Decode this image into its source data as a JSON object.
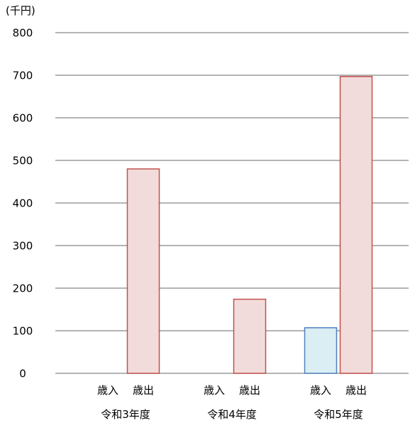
{
  "chart_data": {
    "type": "bar",
    "unit_label": "(千円)",
    "ylim": [
      0,
      800
    ],
    "yticks": [
      0,
      100,
      200,
      300,
      400,
      500,
      600,
      700,
      800
    ],
    "grid": true,
    "groups": [
      {
        "label": "令和3年度",
        "bars": [
          {
            "label": "歳入",
            "value": 0,
            "fill": "#DAEEF3",
            "stroke": "#4F81BD"
          },
          {
            "label": "歳出",
            "value": 480,
            "fill": "#F2DCDB",
            "stroke": "#C0504D"
          }
        ]
      },
      {
        "label": "令和4年度",
        "bars": [
          {
            "label": "歳入",
            "value": 0,
            "fill": "#DAEEF3",
            "stroke": "#4F81BD"
          },
          {
            "label": "歳出",
            "value": 174,
            "fill": "#F2DCDB",
            "stroke": "#C0504D"
          }
        ]
      },
      {
        "label": "令和5年度",
        "bars": [
          {
            "label": "歳入",
            "value": 107,
            "fill": "#DAEEF3",
            "stroke": "#4F81BD"
          },
          {
            "label": "歳出",
            "value": 697,
            "fill": "#F2DCDB",
            "stroke": "#C0504D"
          }
        ]
      }
    ]
  }
}
